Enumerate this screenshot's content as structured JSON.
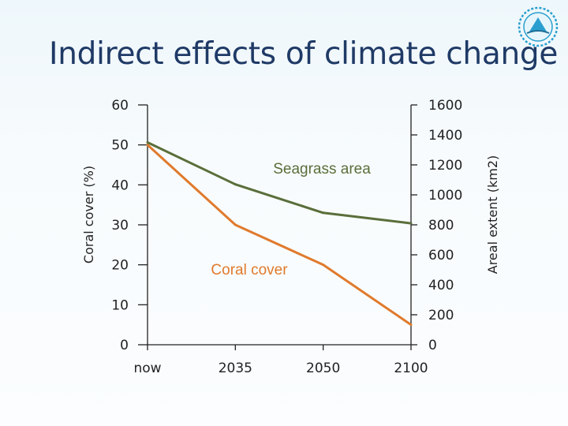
{
  "slide": {
    "title": "Indirect effects of climate change"
  },
  "logo": {
    "icon": "circular-emblem-icon"
  },
  "colors": {
    "title": "#1f3a66",
    "coral": "#e07a2d",
    "seagrass": "#5a6e3a",
    "axis": "#222222"
  },
  "chart_data": {
    "type": "line",
    "x": [
      "now",
      "2035",
      "2050",
      "2100"
    ],
    "ylabel": "Coral cover (%)",
    "y2label": "Areal extent (km2)",
    "ylim": [
      0,
      60
    ],
    "y2lim": [
      0,
      1600
    ],
    "yticks": [
      "0",
      "10",
      "20",
      "30",
      "40",
      "50",
      "60"
    ],
    "y2ticks": [
      "0",
      "200",
      "400",
      "600",
      "800",
      "1000",
      "1200",
      "1400",
      "1600"
    ],
    "grid": false,
    "series": [
      {
        "name": "Coral cover",
        "axis": "left",
        "values": [
          50,
          30,
          20,
          5
        ]
      },
      {
        "name": "Seagrass area",
        "axis": "right",
        "values": [
          1350,
          1070,
          880,
          810
        ]
      }
    ]
  }
}
